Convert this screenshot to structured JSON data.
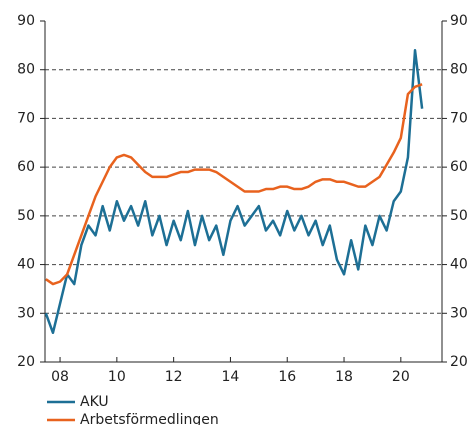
{
  "chart_data": {
    "type": "line",
    "x": [
      2007.5,
      2007.75,
      2008,
      2008.25,
      2008.5,
      2008.75,
      2009,
      2009.25,
      2009.5,
      2009.75,
      2010,
      2010.25,
      2010.5,
      2010.75,
      2011,
      2011.25,
      2011.5,
      2011.75,
      2012,
      2012.25,
      2012.5,
      2012.75,
      2013,
      2013.25,
      2013.5,
      2013.75,
      2014,
      2014.25,
      2014.5,
      2014.75,
      2015,
      2015.25,
      2015.5,
      2015.75,
      2016,
      2016.25,
      2016.5,
      2016.75,
      2017,
      2017.25,
      2017.5,
      2017.75,
      2018,
      2018.25,
      2018.5,
      2018.75,
      2019,
      2019.25,
      2019.5,
      2019.75,
      2020,
      2020.25,
      2020.5,
      2020.75
    ],
    "series": [
      {
        "name": "AKU",
        "color": "#1d6f95",
        "values": [
          30,
          26,
          32,
          38,
          36,
          44,
          48,
          46,
          52,
          47,
          53,
          49,
          52,
          48,
          53,
          46,
          50,
          44,
          49,
          45,
          51,
          44,
          50,
          45,
          48,
          42,
          49,
          52,
          48,
          50,
          52,
          47,
          49,
          46,
          51,
          47,
          50,
          46,
          49,
          44,
          48,
          41,
          38,
          45,
          39,
          48,
          44,
          50,
          47,
          53,
          55,
          62,
          84,
          72
        ]
      },
      {
        "name": "Arbetsförmedlingen",
        "color": "#e8621e",
        "values": [
          37,
          36,
          36.5,
          38,
          42,
          46,
          50,
          54,
          57,
          60,
          62,
          62.5,
          62,
          60.5,
          59,
          58,
          58,
          58,
          58.5,
          59,
          59,
          59.5,
          59.5,
          59.5,
          59,
          58,
          57,
          56,
          55,
          55,
          55,
          55.5,
          55.5,
          56,
          56,
          55.5,
          55.5,
          56,
          57,
          57.5,
          57.5,
          57,
          57,
          56.5,
          56,
          56,
          57,
          58,
          60.5,
          63,
          66,
          75,
          76.5,
          77
        ]
      }
    ],
    "xlim": [
      2007.47,
      2021.45
    ],
    "xticks": [
      {
        "value": 2008,
        "label": "08"
      },
      {
        "value": 2010,
        "label": "10"
      },
      {
        "value": 2012,
        "label": "12"
      },
      {
        "value": 2014,
        "label": "14"
      },
      {
        "value": 2016,
        "label": "16"
      },
      {
        "value": 2018,
        "label": "18"
      },
      {
        "value": 2020,
        "label": "20"
      }
    ],
    "ylim": [
      20,
      90
    ],
    "yticks": [
      20,
      30,
      40,
      50,
      60,
      70,
      80,
      90
    ],
    "y2lim": [
      20,
      90
    ],
    "y2ticks": [
      20,
      30,
      40,
      50,
      60,
      70,
      80,
      90
    ],
    "grid": true,
    "legend": "bottom"
  }
}
